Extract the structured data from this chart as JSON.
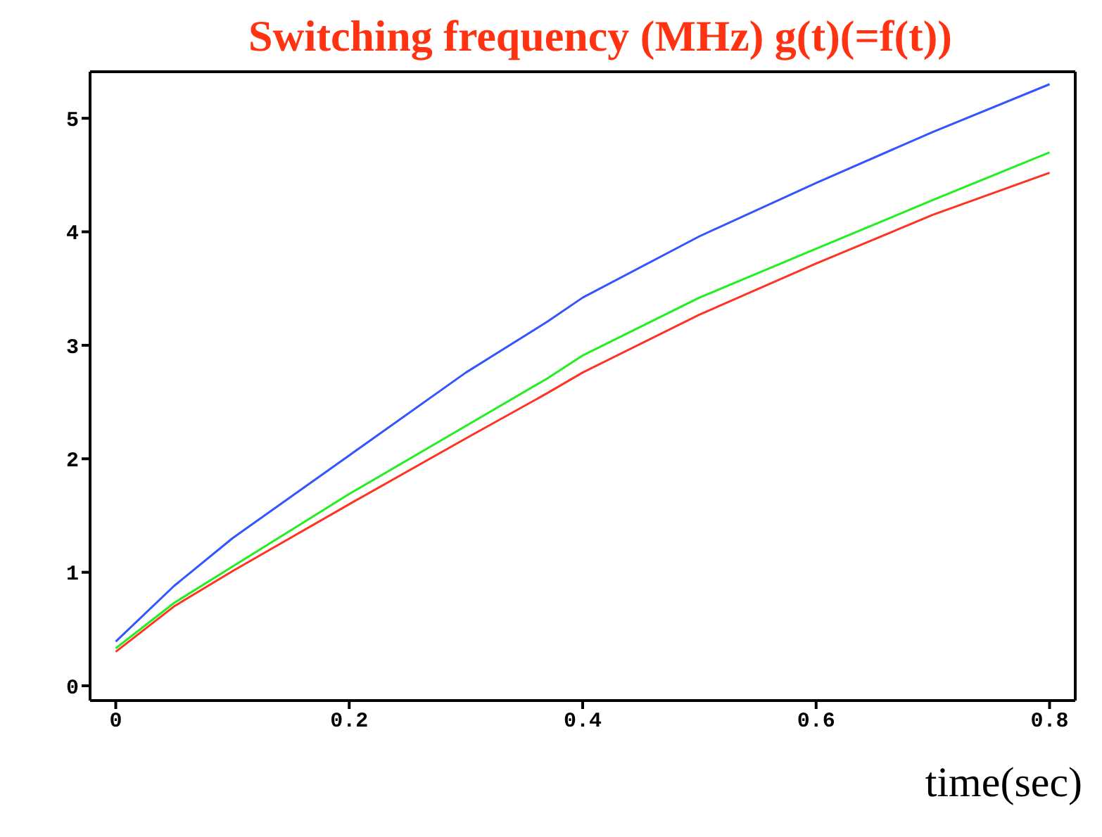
{
  "chart_data": {
    "type": "line",
    "title": "Switching frequency (MHz) g(t)(=f(t))",
    "xlabel": "time(sec)",
    "x": [
      0,
      0.05,
      0.1,
      0.2,
      0.3,
      0.37,
      0.4,
      0.5,
      0.6,
      0.7,
      0.8
    ],
    "series": [
      {
        "color": "#3355ff",
        "values": [
          0.39,
          0.88,
          1.3,
          2.03,
          2.76,
          3.21,
          3.42,
          3.96,
          4.43,
          4.88,
          5.3
        ]
      },
      {
        "color": "#22ee22",
        "values": [
          0.33,
          0.73,
          1.05,
          1.69,
          2.29,
          2.71,
          2.91,
          3.42,
          3.85,
          4.28,
          4.7
        ]
      },
      {
        "color": "#ff3322",
        "values": [
          0.3,
          0.7,
          1.01,
          1.6,
          2.18,
          2.58,
          2.76,
          3.27,
          3.72,
          4.15,
          4.52
        ]
      }
    ],
    "xlim": [
      -0.022,
      0.822
    ],
    "ylim": [
      -0.13,
      5.41
    ],
    "xticks": [
      0,
      0.2,
      0.4,
      0.6,
      0.8
    ],
    "yticks": [
      0,
      1,
      2,
      3,
      4,
      5
    ],
    "grid": false,
    "legend": false,
    "marker": "none",
    "line_style": "solid"
  }
}
